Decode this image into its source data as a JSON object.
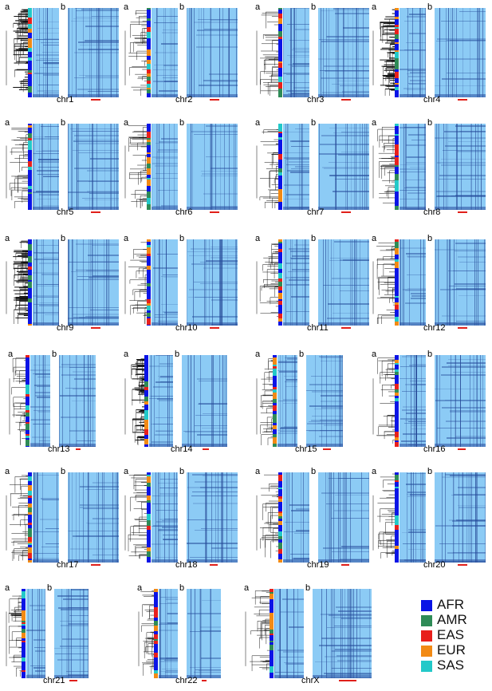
{
  "panel_letters": {
    "left": "a",
    "right": "b"
  },
  "chromosomes": [
    "chr1",
    "chr2",
    "chr3",
    "chr4",
    "chr5",
    "chr6",
    "chr7",
    "chr8",
    "chr9",
    "chr10",
    "chr11",
    "chr12",
    "chr13",
    "chr14",
    "chr15",
    "chr16",
    "chr17",
    "chr18",
    "chr19",
    "chr20",
    "chr21",
    "chr22",
    "chrX"
  ],
  "legend": [
    {
      "label": "AFR",
      "color": "#0a14e6"
    },
    {
      "label": "AMR",
      "color": "#2e8b57"
    },
    {
      "label": "EAS",
      "color": "#e8201c"
    },
    {
      "label": "EUR",
      "color": "#f28a14"
    },
    {
      "label": "SAS",
      "color": "#22c9c9"
    }
  ],
  "colors": {
    "heatmap_base": "#8ccbf5",
    "heatmap_dark": "#1f3f8f",
    "scale_bar": "#e0201a"
  }
}
